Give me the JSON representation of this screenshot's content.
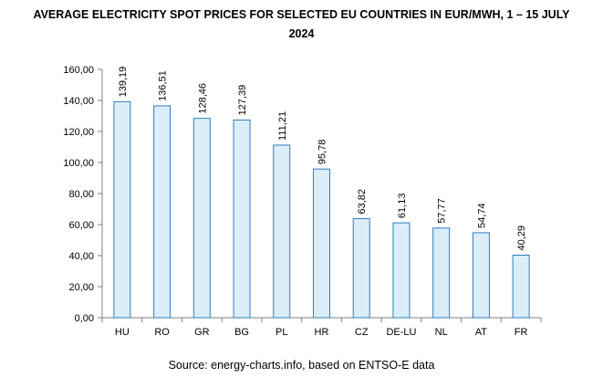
{
  "title_line1": "AVERAGE ELECTRICITY SPOT PRICES FOR SELECTED EU COUNTRIES IN EUR/MWH, 1 – 15 JULY",
  "title_line2": "2024",
  "source": "Source: energy-charts.info, based on ENTSO-E data",
  "colors": {
    "bar_fill": "#dbeef7",
    "bar_stroke": "#2e7cc0",
    "axis": "#808080"
  },
  "chart_data": {
    "type": "bar",
    "title": "AVERAGE ELECTRICITY SPOT PRICES FOR SELECTED EU COUNTRIES IN EUR/MWH, 1 – 15 JULY 2024",
    "categories": [
      "HU",
      "RO",
      "GR",
      "BG",
      "PL",
      "HR",
      "CZ",
      "DE-LU",
      "NL",
      "AT",
      "FR"
    ],
    "values": [
      139.19,
      136.51,
      128.46,
      127.39,
      111.21,
      95.78,
      63.82,
      61.13,
      57.77,
      54.74,
      40.29
    ],
    "value_labels": [
      "139,19",
      "136,51",
      "128,46",
      "127,39",
      "111,21",
      "95,78",
      "63,82",
      "61,13",
      "57,77",
      "54,74",
      "40,29"
    ],
    "yticks": [
      "0,00",
      "20,00",
      "40,00",
      "60,00",
      "80,00",
      "100,00",
      "120,00",
      "140,00",
      "160,00"
    ],
    "ylim": [
      0,
      160
    ],
    "xlabel": "",
    "ylabel": "",
    "grid": false,
    "legend": "none"
  }
}
